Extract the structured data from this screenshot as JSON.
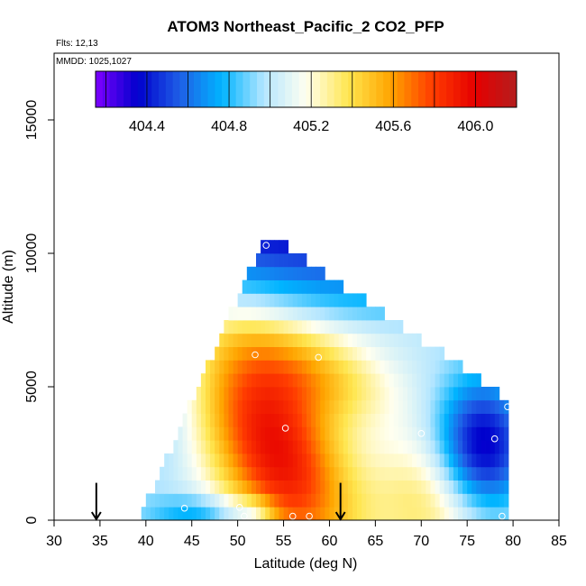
{
  "chart_data": {
    "type": "heatmap",
    "title": "ATOM3 Northeast_Pacific_2 CO2_PFP",
    "flights_text": "Flts: 12,13",
    "dates_text": "MMDD: 1025,1027",
    "xlabel": "Latitude (deg N)",
    "ylabel": "Altitude (m)",
    "xlim": [
      30,
      85
    ],
    "ylim": [
      0,
      17500
    ],
    "x_ticks": [
      30,
      35,
      40,
      45,
      50,
      55,
      60,
      65,
      70,
      75,
      80,
      85
    ],
    "y_ticks": [
      0,
      5000,
      10000,
      15000
    ],
    "colorbar": {
      "min": 404.15,
      "max": 406.2,
      "ticks": [
        404.4,
        404.8,
        405.2,
        405.6,
        406.0
      ],
      "tick_labels": [
        "404.4",
        "404.8",
        "405.2",
        "405.6",
        "406.0"
      ],
      "colors": [
        "#7f00ff",
        "#0000cd",
        "#1f5fe6",
        "#00b4ff",
        "#b4e6ff",
        "#fffff0",
        "#ffe650",
        "#ffa500",
        "#ff3c00",
        "#e60000",
        "#b41e1e"
      ]
    },
    "field": {
      "lat_range": [
        39.5,
        79.5
      ],
      "alt_step_m": 500,
      "base_value": 405.0,
      "max_alt_m": 10500,
      "boundary_peak_lat": 53.0,
      "boundary_left_lat_at_ground": 39.5,
      "boundary_right_lat_at_4500m": 79.5
    },
    "samples": [
      {
        "lat": 39.8,
        "alt": 1300
      },
      {
        "lat": 44.2,
        "alt": 450
      },
      {
        "lat": 50.2,
        "alt": 480
      },
      {
        "lat": 50.7,
        "alt": 150
      },
      {
        "lat": 53.1,
        "alt": 10300
      },
      {
        "lat": 51.9,
        "alt": 6200
      },
      {
        "lat": 58.8,
        "alt": 6100
      },
      {
        "lat": 55.2,
        "alt": 3450
      },
      {
        "lat": 56.0,
        "alt": 150
      },
      {
        "lat": 57.8,
        "alt": 150
      },
      {
        "lat": 70.0,
        "alt": 3250
      },
      {
        "lat": 78.0,
        "alt": 3050
      },
      {
        "lat": 79.4,
        "alt": 4250
      },
      {
        "lat": 78.8,
        "alt": 150
      }
    ],
    "markers": [
      {
        "name": "surface-site-arrow",
        "lat": 34.6
      },
      {
        "name": "surface-site-arrow",
        "lat": 61.2
      }
    ]
  }
}
